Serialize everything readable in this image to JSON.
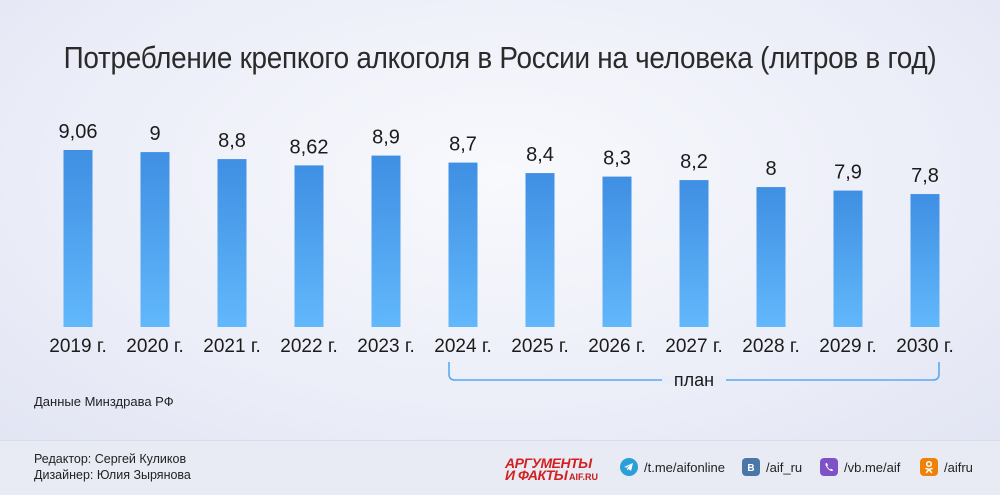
{
  "colors": {
    "bar_top": "#3f8fe3",
    "bar_bottom": "#62b8fb",
    "bracket": "#5aa9f0",
    "logo_red": "#d32020"
  },
  "chart_data": {
    "type": "bar",
    "title": "Потребление крепкого алкоголя в России на человека (литров в год)",
    "categories": [
      "2019 г.",
      "2020 г.",
      "2021 г.",
      "2022 г.",
      "2023 г.",
      "2024 г.",
      "2025 г.",
      "2026 г.",
      "2027 г.",
      "2028 г.",
      "2029 г.",
      "2030 г."
    ],
    "values": [
      9.06,
      9,
      8.8,
      8.62,
      8.9,
      8.7,
      8.4,
      8.3,
      8.2,
      8,
      7.9,
      7.8
    ],
    "value_labels": [
      "9,06",
      "9",
      "8,8",
      "8,62",
      "8,9",
      "8,7",
      "8,4",
      "8,3",
      "8,2",
      "8",
      "7,9",
      "7,8"
    ],
    "plan_label": "план",
    "plan_range": [
      "2024 г.",
      "2030 г."
    ],
    "y_axis_visible": false,
    "grid": false,
    "legend": "none"
  },
  "source": "Данные Минздрава РФ",
  "footer": {
    "editor": "Редактор: Сергей Куликов",
    "designer": "Дизайнер: Юлия Зырянова",
    "logo_line1": "АРГУМЕНТЫ",
    "logo_line2": "И ФАКТЫ",
    "logo_site": "AIF.RU",
    "socials": [
      {
        "icon": "telegram-icon",
        "label": "/t.me/aifonline"
      },
      {
        "icon": "vk-icon",
        "label": "/aif_ru"
      },
      {
        "icon": "viber-icon",
        "label": "/vb.me/aif"
      },
      {
        "icon": "odnoklassniki-icon",
        "label": "/aifru"
      }
    ]
  }
}
